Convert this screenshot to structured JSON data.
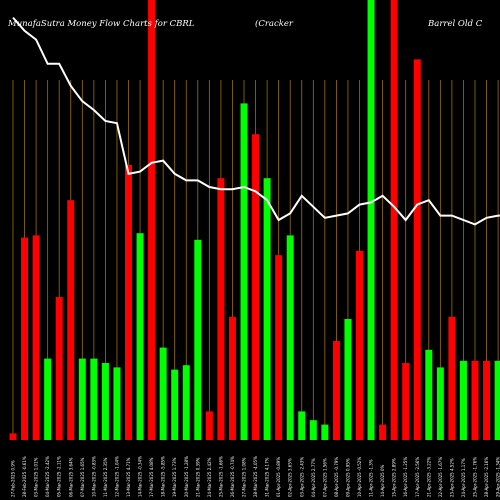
{
  "chart_data": {
    "type": "bar",
    "title_left": "MunafaSutra  Money Flow  Charts for CBRL",
    "title_mid": "(Cracker",
    "title_right": "Barrel Old C",
    "colors": {
      "background": "#000000",
      "up": "#00ff00",
      "down": "#ff0000",
      "grid": "#b8860b",
      "line": "#ffffff"
    },
    "categories": [
      "27-Feb-2025 0.9%",
      "28-Feb-2025 -0.61%",
      "03-Mar-2025 1.01%",
      "04-Mar-2025 -2.42%",
      "05-Mar-2025 -2.11%",
      "06-Mar-2025 3.64%",
      "07-Mar-2025 1.65%",
      "10-Mar-2025 -0.83%",
      "11-Mar-2025 2.35%",
      "12-Mar-2025 -1.04%",
      "13-Mar-2025 4.71%",
      "14-Mar-2025 -0.34%",
      "17-Mar-2025 4.08%",
      "18-Mar-2025 -5.85%",
      "19-Mar-2025 1.73%",
      "20-Mar-2025 -1.28%",
      "21-Mar-2025 0.39%",
      "24-Mar-2025 2.42%",
      "25-Mar-2025 -1.66%",
      "26-Mar-2025 -0.74%",
      "27-Mar-2025 1.08%",
      "28-Mar-2025 -4.05%",
      "31-Mar-2025 4.17%",
      "01-Apr-2025 -0.89%",
      "02-Apr-2025 3.65%",
      "03-Apr-2025 -2.43%",
      "04-Apr-2025 2.77%",
      "07-Apr-2025 1.56%",
      "08-Apr-2025 -0.79%",
      "09-Apr-2025 0.95%",
      "10-Apr-2025 -0.52%",
      "11-Apr-2025 -1.3%",
      "14-Apr-2025 0%",
      "15-Apr-2025 2.89%",
      "16-Apr-2025 -1.25%",
      "17-Apr-2025 -2.56%",
      "21-Apr-2025 -3.22%",
      "22-Apr-2025 -1.67%",
      "23-Apr-2025 4.52%",
      "24-Apr-2025 1.17%",
      "25-Apr-2025 -1.76%",
      "28-Apr-2025 -2.16%",
      "29-Apr-2025 -1.34%",
      "30-Apr-2025 1.84%",
      "01-May-2025 1.06%"
    ],
    "bar_colors": [
      "red",
      "red",
      "red",
      "green",
      "red",
      "red",
      "green",
      "green",
      "green",
      "green",
      "red",
      "green",
      "red",
      "green",
      "green",
      "green",
      "green",
      "red",
      "red",
      "red",
      "green",
      "red",
      "green",
      "red",
      "green",
      "green",
      "green",
      "green",
      "red",
      "green",
      "red",
      "green",
      "red",
      "red",
      "red",
      "red",
      "green",
      "green",
      "red",
      "green",
      "red",
      "red",
      "green",
      "green",
      "red"
    ],
    "values": [
      1.5,
      46,
      46.5,
      18.5,
      32.5,
      54.5,
      18.5,
      18.5,
      17.5,
      16.5,
      62.5,
      47,
      100,
      21,
      16,
      17,
      45.5,
      6.5,
      59.5,
      28,
      76.5,
      69.5,
      59.5,
      42,
      46.5,
      6.5,
      4.5,
      3.5,
      22.5,
      27.5,
      43,
      100,
      3.5,
      100,
      17.5,
      86.5,
      20.5,
      16.5,
      28,
      18,
      18,
      18,
      18,
      18,
      18
    ],
    "line": [
      96,
      93,
      91,
      85.5,
      85.5,
      80.5,
      77,
      75,
      72.5,
      72,
      60.5,
      61,
      63,
      63.5,
      60.5,
      59,
      59,
      57.5,
      57,
      57,
      57.5,
      56.5,
      54.5,
      50,
      51.5,
      55.5,
      53,
      50.5,
      51,
      51.5,
      53.5,
      54,
      55.5,
      53,
      50,
      53.5,
      54.5,
      51,
      51,
      50,
      49,
      50.5,
      51,
      51,
      51
    ],
    "ylim": [
      0,
      100
    ]
  }
}
